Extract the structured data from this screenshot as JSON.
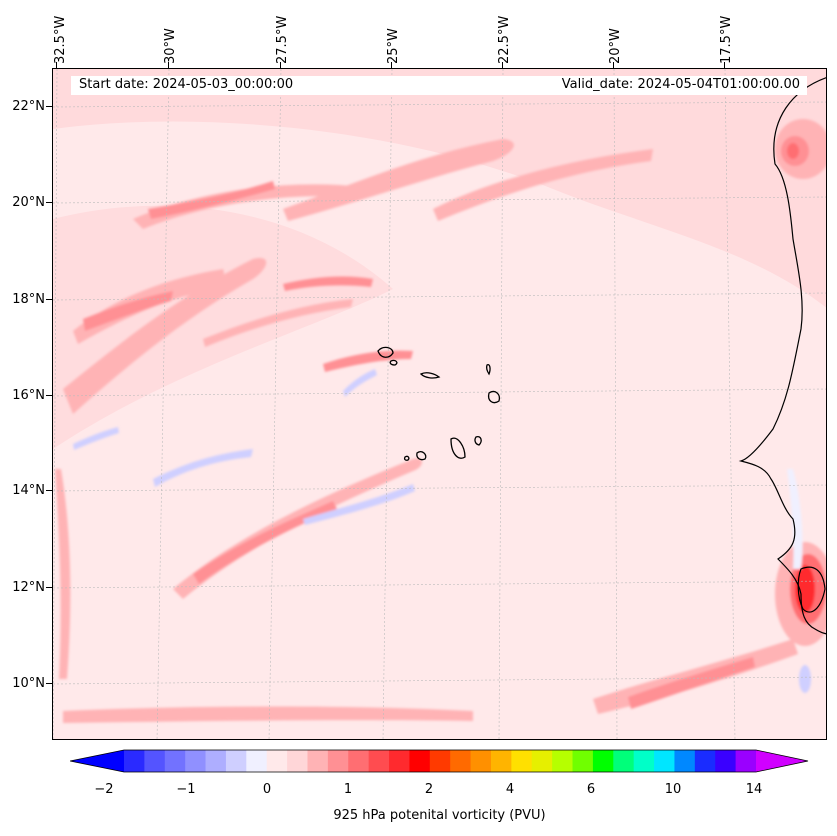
{
  "header": {
    "start_date": "Start date: 2024-05-03_00:00:00",
    "valid_date": "Valid_date: 2024-05-04T01:00:00.00"
  },
  "axes": {
    "longitude_labels": [
      "32.5°W",
      "30°W",
      "27.5°W",
      "25°W",
      "22.5°W",
      "20°W",
      "17.5°W"
    ],
    "latitude_labels": [
      "22°N",
      "20°N",
      "18°N",
      "16°N",
      "14°N",
      "12°N",
      "10°N"
    ]
  },
  "colorbar": {
    "label": "925 hPa potenital vorticity (PVU)",
    "tick_labels": [
      "−2",
      "−1",
      "0",
      "1",
      "2",
      "4",
      "6",
      "10",
      "14"
    ],
    "colors": [
      "#0000ff",
      "#2a2aff",
      "#5454ff",
      "#7272ff",
      "#9090ff",
      "#aeaeff",
      "#cfcfff",
      "#f0f0ff",
      "#ffe9ea",
      "#ffd6d8",
      "#ffb3b5",
      "#ff9094",
      "#ff6e72",
      "#ff4c50",
      "#ff2a2e",
      "#ff0000",
      "#ff3a00",
      "#ff6a00",
      "#ff9000",
      "#ffb400",
      "#ffe000",
      "#e6ef00",
      "#b6ff00",
      "#70ff00",
      "#00ff00",
      "#00ff7a",
      "#00ffc8",
      "#00e6ff",
      "#0088ff",
      "#1a2cff",
      "#3a00ff",
      "#9a00ff",
      "#d000ff"
    ]
  },
  "map": {
    "background_color": "#ffe9ea",
    "islands": [
      "Cape Verde islands"
    ],
    "coastline": "West African coast"
  }
}
